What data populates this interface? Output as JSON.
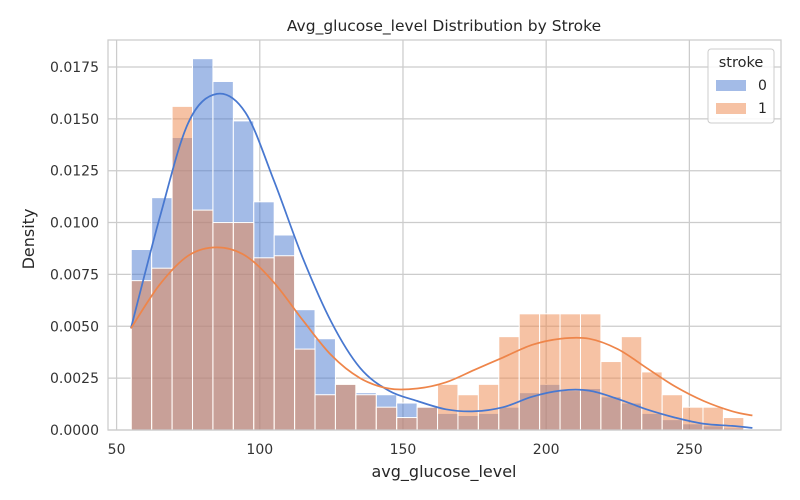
{
  "chart_data": {
    "type": "histogram",
    "title": "Avg_glucose_level Distribution by Stroke",
    "xlabel": "avg_glucose_level",
    "ylabel": "Density",
    "xlim": [
      47,
      282
    ],
    "ylim": [
      0,
      0.0188
    ],
    "x_ticks": [
      50,
      100,
      150,
      200,
      250
    ],
    "y_ticks": [
      0.0,
      0.0025,
      0.005,
      0.0075,
      0.01,
      0.0125,
      0.015,
      0.0175
    ],
    "y_tick_labels": [
      "0.0000",
      "0.0025",
      "0.0050",
      "0.0075",
      "0.0100",
      "0.0125",
      "0.0150",
      "0.0175"
    ],
    "grid": true,
    "bin_edges": [
      55.12,
      62.25,
      69.38,
      76.51,
      83.64,
      90.77,
      97.9,
      105.03,
      112.16,
      119.29,
      126.42,
      133.55,
      140.68,
      147.81,
      154.94,
      162.07,
      169.2,
      176.33,
      183.46,
      190.59,
      197.72,
      204.85,
      211.98,
      219.11,
      226.24,
      233.37,
      240.5,
      247.63,
      254.76,
      261.89,
      269.02
    ],
    "legend": {
      "title": "stroke",
      "placement": "top-right"
    },
    "series": [
      {
        "name": "0",
        "color": "#4878d0",
        "values": [
          0.0087,
          0.0112,
          0.0141,
          0.0179,
          0.0168,
          0.0149,
          0.011,
          0.0094,
          0.0058,
          0.0044,
          0.0022,
          0.0018,
          0.0017,
          0.0013,
          0.0011,
          0.0008,
          0.0007,
          0.0008,
          0.0011,
          0.0018,
          0.0022,
          0.0019,
          0.002,
          0.0016,
          0.0013,
          0.0008,
          0.0005,
          0.0003,
          0.0002,
          0.0001
        ],
        "kde_x": [
          55,
          65,
          75,
          85,
          95,
          105,
          115,
          125,
          135,
          145,
          155,
          165,
          175,
          185,
          195,
          205,
          215,
          225,
          235,
          245,
          255,
          265,
          272
        ],
        "kde_y": [
          0.0049,
          0.0102,
          0.0148,
          0.0162,
          0.0153,
          0.012,
          0.0083,
          0.0052,
          0.003,
          0.0019,
          0.0014,
          0.001,
          0.0009,
          0.0011,
          0.0016,
          0.0019,
          0.0019,
          0.0015,
          0.001,
          0.0006,
          0.0003,
          0.0002,
          0.0001
        ]
      },
      {
        "name": "1",
        "color": "#ee854a",
        "values": [
          0.0072,
          0.0078,
          0.0156,
          0.0106,
          0.01,
          0.01,
          0.0083,
          0.0084,
          0.0039,
          0.0017,
          0.0022,
          0.0017,
          0.0011,
          0.0006,
          0.0011,
          0.0022,
          0.0017,
          0.0022,
          0.0045,
          0.0056,
          0.0056,
          0.0056,
          0.0056,
          0.0033,
          0.0045,
          0.0028,
          0.0017,
          0.0011,
          0.0011,
          0.0006
        ],
        "kde_x": [
          55,
          65,
          75,
          85,
          95,
          105,
          115,
          125,
          135,
          145,
          155,
          165,
          175,
          185,
          195,
          205,
          215,
          225,
          235,
          245,
          255,
          265,
          272
        ],
        "kde_y": [
          0.0049,
          0.007,
          0.0084,
          0.0088,
          0.0084,
          0.0071,
          0.0053,
          0.0036,
          0.0025,
          0.002,
          0.002,
          0.0023,
          0.0029,
          0.0035,
          0.0041,
          0.0044,
          0.0044,
          0.0039,
          0.003,
          0.0021,
          0.0014,
          0.0009,
          0.0007
        ]
      }
    ]
  }
}
